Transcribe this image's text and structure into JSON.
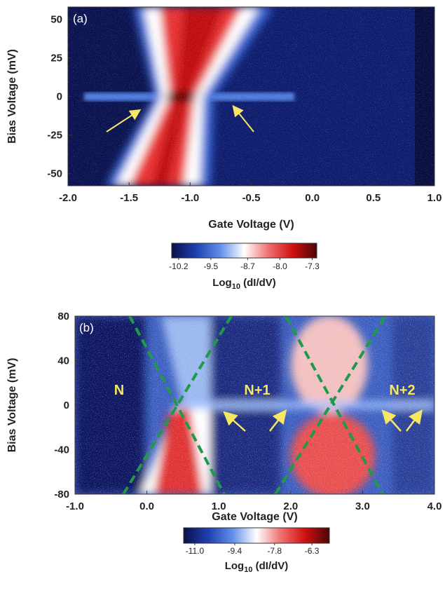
{
  "chart_data": [
    {
      "type": "heatmap",
      "panel_label": "(a)",
      "xlabel": "Gate Voltage (V)",
      "ylabel": "Bias Voltage (mV)",
      "xlim": [
        -2,
        1
      ],
      "ylim": [
        -58,
        58
      ],
      "xticks": [
        {
          "value": -2,
          "label": "-2.0"
        },
        -1.5,
        {
          "value": -1,
          "label": "-1.0"
        },
        -0.5,
        {
          "value": 0,
          "label": "0.0"
        },
        0.5,
        {
          "value": 1,
          "label": "1.0"
        }
      ],
      "yticks": [
        -50,
        -25,
        0,
        25,
        50
      ],
      "colorbar": {
        "label": "Log",
        "label_sub": "10",
        "label_rest": " (dI/dV)",
        "lim": [
          -10.35,
          -7.2
        ],
        "ticks": [
          -10.2,
          -9.5,
          -8.7,
          {
            "value": -8,
            "label": "-8.0"
          },
          -7.3
        ],
        "colormap": [
          "#0a0f4a",
          "#1e3fb0",
          "#5f8ee8",
          "#ffffff",
          "#f07070",
          "#d01010",
          "#4a0606"
        ]
      },
      "annotations": []
    },
    {
      "type": "heatmap",
      "panel_label": "(b)",
      "xlabel": "Gate Voltage (V)",
      "ylabel": "Bias Voltage (mV)",
      "xlim": [
        -1,
        4
      ],
      "ylim": [
        -80,
        80
      ],
      "xticks": [
        {
          "value": -1,
          "label": "-1.0"
        },
        {
          "value": 0,
          "label": "0.0"
        },
        {
          "value": 1,
          "label": "1.0"
        },
        {
          "value": 2,
          "label": "2.0"
        },
        {
          "value": 3,
          "label": "3.0"
        },
        {
          "value": 4,
          "label": "4.0"
        }
      ],
      "yticks": [
        -80,
        -40,
        0,
        40,
        80
      ],
      "colorbar": {
        "label": "Log",
        "label_sub": "10",
        "label_rest": " (dI/dV)",
        "lim": [
          -11.45,
          -5.6
        ],
        "ticks": [
          {
            "value": -11,
            "label": "-11.0"
          },
          -9.4,
          -7.8,
          -6.3
        ],
        "colormap": [
          "#0a0f4a",
          "#1e3fb0",
          "#5f8ee8",
          "#ffffff",
          "#f07070",
          "#d01010",
          "#4a0606"
        ]
      },
      "annotations": [
        "N",
        "N+1",
        "N+2"
      ]
    }
  ]
}
